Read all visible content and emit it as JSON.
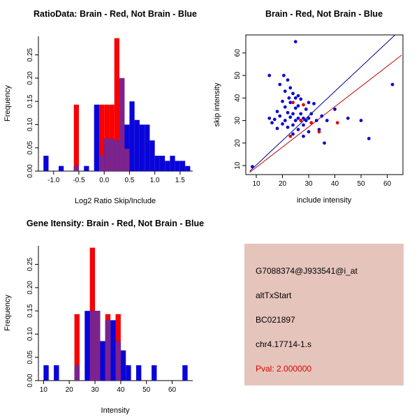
{
  "colors": {
    "bar_red": "#F90002",
    "bar_blue": "#0904D9",
    "overlap_purple": "#7D238C",
    "point_blue": "#0B0BCD",
    "point_red": "#E00000",
    "line_blue": "#00008B",
    "line_red": "#C00000",
    "axis_text": "#000000",
    "info_bg": "#E5C4BB",
    "pval_red": "#E00000"
  },
  "chart_data": [
    {
      "id": "ratio-hist",
      "type": "histogram-overlay",
      "title": "RatioData: Brain - Red, Not Brain - Blue",
      "xlabel": "Log2 Ratio Skip/Include",
      "ylabel": "Frequency",
      "xlim": [
        -1.3,
        1.75
      ],
      "ylim": [
        0,
        0.29
      ],
      "grid": false,
      "legend": {
        "red": "Brain",
        "blue": "Not Brain"
      },
      "xticks": [
        {
          "v": -1,
          "label": "-1.0"
        },
        {
          "v": -0.5,
          "label": "-0.5"
        },
        {
          "v": 0,
          "label": "0.0"
        },
        {
          "v": 0.5,
          "label": "0.5"
        },
        {
          "v": 1,
          "label": "1.0"
        },
        {
          "v": 1.5,
          "label": "1.5"
        }
      ],
      "yticks": [
        {
          "v": 0,
          "label": "0.00"
        },
        {
          "v": 0.05,
          "label": "0.05"
        },
        {
          "v": 0.1,
          "label": "0.10"
        },
        {
          "v": 0.15,
          "label": "0.15"
        },
        {
          "v": 0.2,
          "label": "0.20"
        },
        {
          "v": 0.25,
          "label": "0.25"
        }
      ],
      "bin_width": 0.1,
      "series": {
        "red": [
          [
            -0.6,
            0.143
          ],
          [
            -0.1,
            0.143
          ],
          [
            0,
            0.143
          ],
          [
            0.1,
            0.143
          ],
          [
            0.2,
            0.286
          ],
          [
            0.3,
            0.2
          ],
          [
            0.4,
            0.048
          ]
        ],
        "blue": [
          [
            -1.2,
            0.033
          ],
          [
            -0.9,
            0.011
          ],
          [
            -0.6,
            0.011
          ],
          [
            -0.4,
            0.011
          ],
          [
            -0.2,
            0.143
          ],
          [
            -0.1,
            0.033
          ],
          [
            0,
            0.07
          ],
          [
            0.1,
            0.07
          ],
          [
            0.2,
            0.066
          ],
          [
            0.3,
            0.2
          ],
          [
            0.4,
            0.1
          ],
          [
            0.5,
            0.15
          ],
          [
            0.6,
            0.11
          ],
          [
            0.7,
            0.1
          ],
          [
            0.8,
            0.1
          ],
          [
            0.9,
            0.066
          ],
          [
            1,
            0.033
          ],
          [
            1.1,
            0.033
          ],
          [
            1.2,
            0.022
          ],
          [
            1.3,
            0.033
          ],
          [
            1.4,
            0.022
          ],
          [
            1.5,
            0.022
          ],
          [
            1.6,
            0.011
          ]
        ]
      }
    },
    {
      "id": "skip-include-scatter",
      "type": "scatter",
      "title": "Brain - Red, Not Brain - Blue",
      "xlabel": "include intensity",
      "ylabel": "skip intensity",
      "xlim": [
        6,
        66
      ],
      "ylim": [
        6,
        68
      ],
      "grid": false,
      "legend": {
        "red": "Brain",
        "blue": "Not Brain"
      },
      "xticks": [
        {
          "v": 10,
          "label": "10"
        },
        {
          "v": 20,
          "label": "20"
        },
        {
          "v": 30,
          "label": "30"
        },
        {
          "v": 40,
          "label": "40"
        },
        {
          "v": 50,
          "label": "50"
        },
        {
          "v": 60,
          "label": "60"
        }
      ],
      "yticks": [
        {
          "v": 10,
          "label": "10"
        },
        {
          "v": 20,
          "label": "20"
        },
        {
          "v": 30,
          "label": "30"
        },
        {
          "v": 40,
          "label": "40"
        },
        {
          "v": 50,
          "label": "50"
        },
        {
          "v": 60,
          "label": "60"
        }
      ],
      "lines": [
        {
          "name": "not-brain-fit-line",
          "color_key": "line_blue",
          "x1": 7.5,
          "y1": 7.5,
          "x2": 63,
          "y2": 68
        },
        {
          "name": "brain-fit-line",
          "color_key": "line_red",
          "x1": 7.5,
          "y1": 7,
          "x2": 65.5,
          "y2": 59
        }
      ],
      "points": {
        "blue": [
          [
            8.5,
            9.5
          ],
          [
            25,
            65
          ],
          [
            15,
            50
          ],
          [
            20.5,
            50
          ],
          [
            22,
            48
          ],
          [
            19,
            46
          ],
          [
            23,
            44.5
          ],
          [
            21,
            43
          ],
          [
            24,
            42
          ],
          [
            26,
            41
          ],
          [
            22.5,
            40
          ],
          [
            25,
            40
          ],
          [
            27,
            39.5
          ],
          [
            20,
            38.5
          ],
          [
            23,
            38
          ],
          [
            30,
            38
          ],
          [
            32,
            37.5
          ],
          [
            26,
            36.5
          ],
          [
            21,
            36
          ],
          [
            25,
            35.5
          ],
          [
            29,
            35
          ],
          [
            40,
            35
          ],
          [
            18,
            34
          ],
          [
            22,
            33.5
          ],
          [
            24,
            33
          ],
          [
            27,
            33
          ],
          [
            31,
            33
          ],
          [
            19,
            32
          ],
          [
            35,
            32
          ],
          [
            23,
            31.5
          ],
          [
            26,
            31
          ],
          [
            28,
            31
          ],
          [
            30,
            31
          ],
          [
            45,
            31
          ],
          [
            15,
            31
          ],
          [
            17,
            30.5
          ],
          [
            21,
            30
          ],
          [
            25,
            30
          ],
          [
            29,
            30
          ],
          [
            33,
            30
          ],
          [
            37,
            30
          ],
          [
            50,
            30
          ],
          [
            16,
            29
          ],
          [
            20,
            28.5
          ],
          [
            24,
            28
          ],
          [
            28,
            28
          ],
          [
            22,
            27
          ],
          [
            18,
            26.5
          ],
          [
            26,
            26
          ],
          [
            34,
            26
          ],
          [
            30,
            25
          ],
          [
            24,
            24
          ],
          [
            28,
            23
          ],
          [
            53,
            22
          ],
          [
            36,
            20
          ],
          [
            62,
            46
          ]
        ],
        "red": [
          [
            24,
            38
          ],
          [
            28,
            37
          ],
          [
            27,
            30
          ],
          [
            31,
            29
          ],
          [
            34,
            25
          ],
          [
            41,
            29
          ],
          [
            23,
            23
          ]
        ]
      }
    },
    {
      "id": "gene-intensity-hist",
      "type": "histogram-overlay",
      "title": "Gene Itensity: Brain - Red, Not Brain - Blue",
      "xlabel": "Intensity",
      "ylabel": "Frequency",
      "xlim": [
        8,
        68
      ],
      "ylim": [
        0,
        0.29
      ],
      "grid": false,
      "legend": {
        "red": "Brain",
        "blue": "Not Brain"
      },
      "xticks": [
        {
          "v": 10,
          "label": "10"
        },
        {
          "v": 20,
          "label": "20"
        },
        {
          "v": 30,
          "label": "30"
        },
        {
          "v": 40,
          "label": "40"
        },
        {
          "v": 50,
          "label": "50"
        },
        {
          "v": 60,
          "label": "60"
        }
      ],
      "yticks": [
        {
          "v": 0,
          "label": "0.00"
        },
        {
          "v": 0.05,
          "label": "0.05"
        },
        {
          "v": 0.1,
          "label": "0.10"
        },
        {
          "v": 0.15,
          "label": "0.15"
        },
        {
          "v": 0.2,
          "label": "0.20"
        },
        {
          "v": 0.25,
          "label": "0.25"
        }
      ],
      "bin_width": 2,
      "series": {
        "red": [
          [
            22,
            0.143
          ],
          [
            28,
            0.286
          ],
          [
            30,
            0.15
          ],
          [
            34,
            0.143
          ],
          [
            38,
            0.143
          ]
        ],
        "blue": [
          [
            10,
            0.033
          ],
          [
            14,
            0.033
          ],
          [
            22,
            0.033
          ],
          [
            26,
            0.15
          ],
          [
            28,
            0.15
          ],
          [
            30,
            0.15
          ],
          [
            32,
            0.085
          ],
          [
            34,
            0.13
          ],
          [
            36,
            0.13
          ],
          [
            38,
            0.085
          ],
          [
            40,
            0.065
          ],
          [
            42,
            0.033
          ],
          [
            46,
            0.033
          ],
          [
            52,
            0.033
          ],
          [
            64,
            0.033
          ]
        ]
      }
    }
  ],
  "info_panel": {
    "probe_id": "G7088374@J933541@i_at",
    "event_type": "altTxStart",
    "accession": "BC021897",
    "locus": "chr4.17714-1.s",
    "pval_label": "Pval: 2.000000"
  }
}
